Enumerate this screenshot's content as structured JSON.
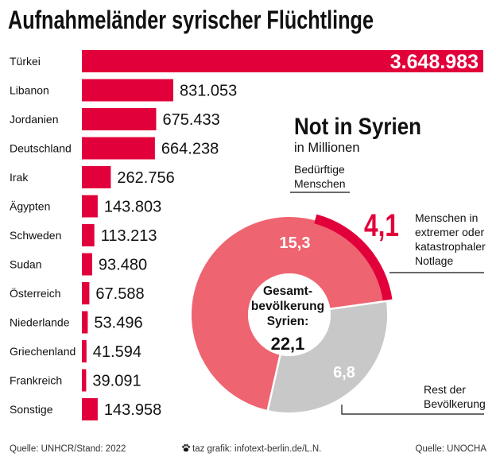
{
  "chart_data": [
    {
      "type": "bar",
      "orientation": "horizontal",
      "title": "Aufnahmeländer syrischer Flüchtlinge",
      "categories": [
        "Türkei",
        "Libanon",
        "Jordanien",
        "Deutschland",
        "Irak",
        "Ägypten",
        "Schweden",
        "Sudan",
        "Österreich",
        "Niederlande",
        "Griechenland",
        "Frankreich",
        "Sonstige"
      ],
      "values": [
        3648983,
        831053,
        675433,
        664238,
        262756,
        143803,
        113213,
        93480,
        67588,
        53496,
        41594,
        39091,
        143958
      ],
      "value_labels": [
        "3.648.983",
        "831.053",
        "675.433",
        "664.238",
        "262.756",
        "143.803",
        "113.213",
        "93.480",
        "67.588",
        "53.496",
        "41.594",
        "39.091",
        "143.958"
      ],
      "grid": false,
      "bar_color": "#e2003b",
      "source": "Quelle: UNHCR/Stand: 2022"
    },
    {
      "type": "pie",
      "donut": true,
      "title": "Not in Syrien",
      "subtitle": "in Millionen",
      "total": 22.1,
      "center_label_lines": [
        "Gesamt-",
        "bevölkerung",
        "Syrien:"
      ],
      "total_label": "22,1",
      "slices": [
        {
          "label_lines": [
            "Bedürftige",
            "Menschen"
          ],
          "value": 15.3,
          "value_label": "15,3",
          "color": "#ee6470",
          "subset": {
            "label_lines": [
              "Menschen in",
              "extremer oder",
              "katastrophaler",
              "Notlage"
            ],
            "value": 4.1,
            "value_label": "4,1",
            "color": "#e2003b"
          }
        },
        {
          "label_lines": [
            "Rest der",
            "Bevölkerung"
          ],
          "value": 6.8,
          "value_label": "6,8",
          "color": "#c8c8c8"
        }
      ],
      "source": "Quelle: UNOCHA"
    }
  ],
  "footer": {
    "credit_icon": "taz-paw-icon",
    "credit": "taz grafik: infotext-berlin.de/L.N."
  }
}
